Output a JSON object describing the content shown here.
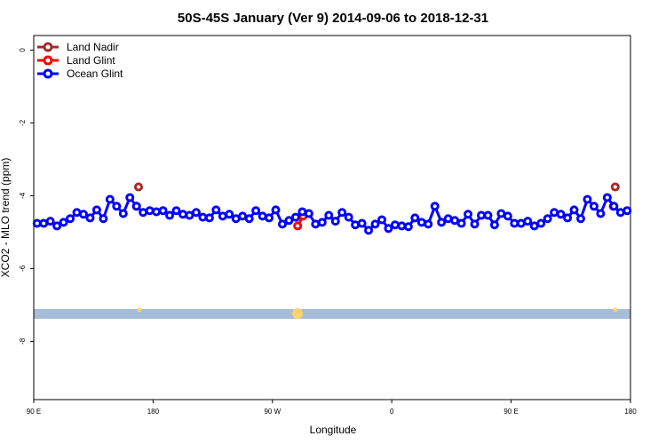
{
  "chart_data": {
    "type": "line",
    "title": "50S-45S January (Ver 9)   2014-09-06 to 2018-12-31",
    "x_label": "Longitude",
    "y_label": "XCO2 - MLO trend (ppm)",
    "xlim": [
      90,
      540
    ],
    "ylim": [
      -9.6,
      0.4
    ],
    "xticks": [
      {
        "value": 90,
        "label": "90 E"
      },
      180,
      {
        "value": 270,
        "label": "90 W"
      },
      {
        "value": 360,
        "label": "0"
      },
      {
        "value": 450,
        "label": "90 E"
      },
      {
        "value": 540,
        "label": "180"
      }
    ],
    "yticks": [
      0,
      -2,
      -4,
      -6,
      -8
    ],
    "legend": "top-left",
    "series": [
      {
        "name": "Land Nadir",
        "color": "#a52a2a",
        "x": [
          169,
          528.5
        ],
        "values": [
          -3.76,
          -3.76
        ]
      },
      {
        "name": "Land Glint",
        "color": "#ff0000",
        "x": [
          167.5,
          289,
          293,
          527
        ],
        "values": [
          -4.29,
          -4.83,
          -4.56,
          -4.29
        ]
      },
      {
        "name": "Ocean Glint",
        "color": "#0000ff",
        "x": [
          92.5,
          97.5,
          102.5,
          107.5,
          112.5,
          117.5,
          122.5,
          127.5,
          132.5,
          137.5,
          142.5,
          147.5,
          152.5,
          157.5,
          162.5,
          167.5,
          172.5,
          177.5,
          182.5,
          187.5,
          192.5,
          197.5,
          202.5,
          207.5,
          212.5,
          217.5,
          222.5,
          227.5,
          232.5,
          237.5,
          242.5,
          247.5,
          252.5,
          257.5,
          262.5,
          267.5,
          272.5,
          277.5,
          282.5,
          287.5,
          292.5,
          297.5,
          302.5,
          307.5,
          312.5,
          317.5,
          322.5,
          327.5,
          332.5,
          337.5,
          342.5,
          347.5,
          352.5,
          357.5,
          362.5,
          367.5,
          372.5,
          377.5,
          382.5,
          387.5,
          392.5,
          397.5,
          402.5,
          407.5,
          412.5,
          417.5,
          422.5,
          427.5,
          432.5,
          437.5,
          442.5,
          447.5,
          452.5,
          457.5,
          462.5,
          467.5,
          472.5,
          477.5,
          482.5,
          487.5,
          492.5,
          497.5,
          502.5,
          507.5,
          512.5,
          517.5,
          522.5,
          527.5,
          532.5,
          537.5
        ],
        "values": [
          -4.76,
          -4.76,
          -4.7,
          -4.83,
          -4.73,
          -4.63,
          -4.46,
          -4.51,
          -4.61,
          -4.39,
          -4.63,
          -4.1,
          -4.29,
          -4.49,
          -4.05,
          -4.29,
          -4.46,
          -4.41,
          -4.44,
          -4.41,
          -4.54,
          -4.41,
          -4.51,
          -4.54,
          -4.46,
          -4.59,
          -4.61,
          -4.39,
          -4.56,
          -4.51,
          -4.63,
          -4.56,
          -4.63,
          -4.41,
          -4.56,
          -4.61,
          -4.39,
          -4.78,
          -4.68,
          -4.59,
          -4.44,
          -4.49,
          -4.78,
          -4.73,
          -4.54,
          -4.7,
          -4.46,
          -4.59,
          -4.8,
          -4.76,
          -4.95,
          -4.78,
          -4.66,
          -4.9,
          -4.8,
          -4.83,
          -4.85,
          -4.61,
          -4.73,
          -4.78,
          -4.29,
          -4.73,
          -4.63,
          -4.68,
          -4.76,
          -4.51,
          -4.78,
          -4.54,
          -4.54,
          -4.8,
          -4.49,
          -4.56,
          -4.76,
          -4.76,
          -4.7,
          -4.83,
          -4.76,
          -4.63,
          -4.46,
          -4.51,
          -4.61,
          -4.39,
          -4.63,
          -4.1,
          -4.29,
          -4.49,
          -4.05,
          -4.29,
          -4.46,
          -4.41
        ]
      }
    ]
  }
}
